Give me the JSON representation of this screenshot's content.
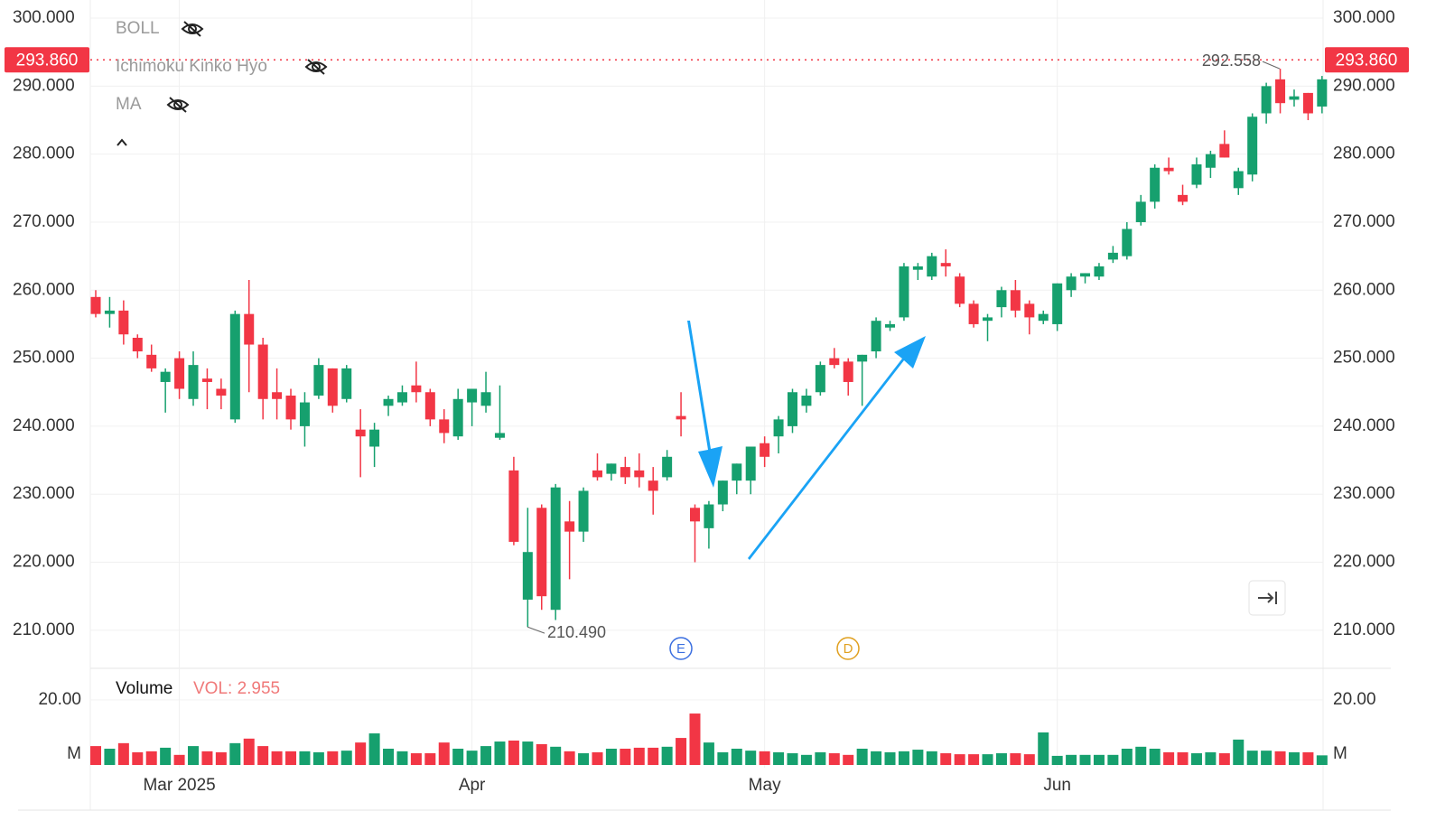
{
  "chart_data": {
    "type": "candlestick",
    "categories": [
      null,
      null,
      null,
      null,
      null,
      null,
      "Mar 2025",
      null,
      null,
      null,
      null,
      null,
      null,
      null,
      null,
      null,
      null,
      null,
      null,
      null,
      null,
      null,
      null,
      null,
      null,
      null,
      null,
      "Apr",
      null,
      null,
      null,
      null,
      null,
      null,
      null,
      null,
      null,
      null,
      null,
      null,
      null,
      null,
      null,
      null,
      null,
      null,
      null,
      null,
      "May",
      null,
      null,
      null,
      null,
      null,
      null,
      null,
      null,
      null,
      null,
      null,
      null,
      null,
      null,
      null,
      null,
      null,
      null,
      null,
      null,
      "Jun",
      null,
      null,
      null,
      null,
      null,
      null,
      null,
      null,
      null,
      null,
      null,
      null,
      null,
      null,
      null,
      null,
      null,
      null,
      null
    ],
    "open": [
      259,
      256.5,
      257,
      253,
      250.5,
      246.5,
      250,
      244,
      247,
      245.5,
      241,
      256.5,
      252,
      245,
      244.5,
      240,
      244.5,
      248.5,
      244,
      239.5,
      237,
      243,
      243.5,
      246,
      245,
      241,
      238.5,
      243.5,
      243,
      238.3,
      233.5,
      214.5,
      228,
      213,
      226,
      224.5,
      233.5,
      233,
      234,
      233.5,
      232,
      232.5,
      241.5,
      228,
      225,
      228.5,
      232,
      232,
      237.5,
      238.5,
      240,
      243,
      245,
      250,
      249.5,
      249.5,
      251,
      254.5,
      256,
      263,
      262,
      264,
      262,
      258,
      255.5,
      257.5,
      260,
      258,
      255.5,
      255,
      260,
      262,
      262,
      264.5,
      265,
      270,
      273,
      278,
      274,
      275.5,
      278,
      281.5,
      275,
      277,
      286,
      291,
      288,
      289,
      287
    ],
    "high": [
      260,
      259,
      258.5,
      253.5,
      252,
      248.5,
      251,
      251,
      248.5,
      247,
      257,
      261.5,
      253,
      248.5,
      245.5,
      245,
      250,
      248.5,
      249,
      242.5,
      240.5,
      244.5,
      246,
      249.5,
      245.5,
      242.5,
      245.5,
      245.5,
      248,
      246,
      235.5,
      228,
      228.5,
      231.5,
      229,
      231,
      236,
      234.5,
      235.5,
      236,
      234,
      236.5,
      245,
      228.5,
      229,
      232,
      234.5,
      236.5,
      238.5,
      241.5,
      245.5,
      245.5,
      249.5,
      251.5,
      250,
      250.5,
      256,
      255.5,
      264,
      264,
      265.5,
      266,
      262.5,
      258.5,
      256.5,
      260.5,
      261.5,
      258.5,
      257,
      261,
      262.5,
      262.5,
      264,
      266.5,
      270,
      274,
      278.5,
      279.5,
      275.5,
      279.5,
      280.5,
      283.5,
      278,
      286,
      290.5,
      292.558,
      289.5,
      289,
      291.5
    ],
    "low": [
      256,
      254.5,
      252,
      250,
      248,
      242,
      244,
      243,
      242.5,
      242.5,
      240.5,
      245,
      241,
      241,
      239.5,
      237,
      244,
      242,
      243.5,
      232.5,
      234,
      241.5,
      243,
      243.5,
      240,
      237.5,
      238,
      240,
      242,
      238,
      222.5,
      210.49,
      213,
      211.5,
      217.5,
      223,
      232,
      232,
      231.5,
      231,
      227,
      232,
      238.5,
      220,
      222,
      227.5,
      230,
      230,
      234,
      236,
      239,
      242,
      244.5,
      248.5,
      244.5,
      243,
      250,
      254,
      255.5,
      261.5,
      261.5,
      262,
      257.5,
      254.5,
      252.5,
      256,
      256,
      253.5,
      255,
      254,
      259,
      261,
      261.5,
      264,
      264.5,
      269.5,
      272,
      277,
      272.5,
      275,
      276.5,
      279.5,
      274,
      276,
      284.5,
      286,
      287,
      285,
      286
    ],
    "close": [
      256.5,
      257,
      253.5,
      251,
      248.5,
      248,
      245.5,
      249,
      246.5,
      244.5,
      256.5,
      252,
      244,
      244,
      241,
      243.5,
      249,
      243,
      248.5,
      238.5,
      239.5,
      244,
      245,
      245,
      241,
      239,
      244,
      245.5,
      245,
      239,
      223,
      221.5,
      215,
      231,
      224.5,
      230.5,
      232.5,
      234.5,
      232.5,
      232.5,
      230.5,
      235.5,
      241,
      226,
      228.5,
      232,
      234.5,
      237,
      235.5,
      241,
      245,
      244.5,
      249,
      249,
      246.5,
      250.5,
      255.5,
      255,
      263.5,
      263.5,
      265,
      263.5,
      258,
      255,
      256,
      260,
      257,
      256,
      256.5,
      261,
      262,
      262.5,
      263.5,
      265.5,
      269,
      273,
      278,
      277.5,
      273,
      278.5,
      280,
      279.5,
      277.5,
      285.5,
      290,
      287.5,
      288.5,
      286,
      291
    ],
    "up_color": "#16a06e",
    "down_color": "#f23645",
    "ylim": [
      204.4,
      302.0
    ],
    "yticks": [
      {
        "value": 300,
        "label": "300.000"
      },
      {
        "value": 290,
        "label": "290.000"
      },
      {
        "value": 280,
        "label": "280.000"
      },
      {
        "value": 270,
        "label": "270.000"
      },
      {
        "value": 260,
        "label": "260.000"
      },
      {
        "value": 250,
        "label": "250.000"
      },
      {
        "value": 240,
        "label": "240.000"
      },
      {
        "value": 230,
        "label": "230.000"
      },
      {
        "value": 220,
        "label": "220.000"
      },
      {
        "value": 210,
        "label": "210.000"
      }
    ],
    "grid": true,
    "last_price": {
      "value": 293.86,
      "label": "293.860"
    },
    "high_label": {
      "value": 292.558,
      "label": "292.558"
    },
    "low_label": {
      "value": 210.49,
      "label": "210.490"
    },
    "indicators": [
      "BOLL",
      "Ichimoku Kinko Hyo",
      "MA"
    ],
    "events": [
      "E",
      "D"
    ],
    "volume": {
      "title": "Volume",
      "value_label": "VOL: 2.955",
      "values": [
        5.8,
        5.0,
        6.7,
        3.9,
        4.2,
        5.3,
        3.1,
        5.8,
        4.2,
        3.9,
        6.7,
        8.1,
        5.8,
        4.2,
        4.2,
        4.2,
        3.9,
        4.2,
        4.4,
        6.9,
        9.7,
        5.0,
        4.2,
        3.6,
        3.6,
        6.9,
        5.0,
        4.4,
        5.8,
        7.2,
        7.5,
        7.2,
        6.4,
        5.6,
        4.2,
        3.6,
        3.9,
        5.0,
        5.0,
        5.3,
        5.3,
        5.6,
        8.3,
        15.8,
        6.9,
        3.9,
        5.0,
        4.4,
        4.2,
        3.9,
        3.6,
        3.1,
        3.9,
        3.6,
        3.1,
        5.0,
        4.2,
        3.9,
        4.2,
        4.7,
        4.2,
        3.6,
        3.3,
        3.3,
        3.3,
        3.6,
        3.6,
        3.3,
        10.0,
        2.8,
        3.1,
        3.1,
        3.1,
        3.1,
        5.0,
        5.6,
        5.0,
        3.9,
        3.9,
        3.6,
        3.9,
        3.6,
        7.8,
        4.4,
        4.4,
        4.2,
        3.9,
        3.9,
        2.955
      ],
      "ylim": [
        0,
        28.3
      ],
      "yticks": [
        {
          "value": 20,
          "label": "20.00"
        },
        {
          "value": 3.33,
          "label": "M"
        }
      ]
    }
  }
}
